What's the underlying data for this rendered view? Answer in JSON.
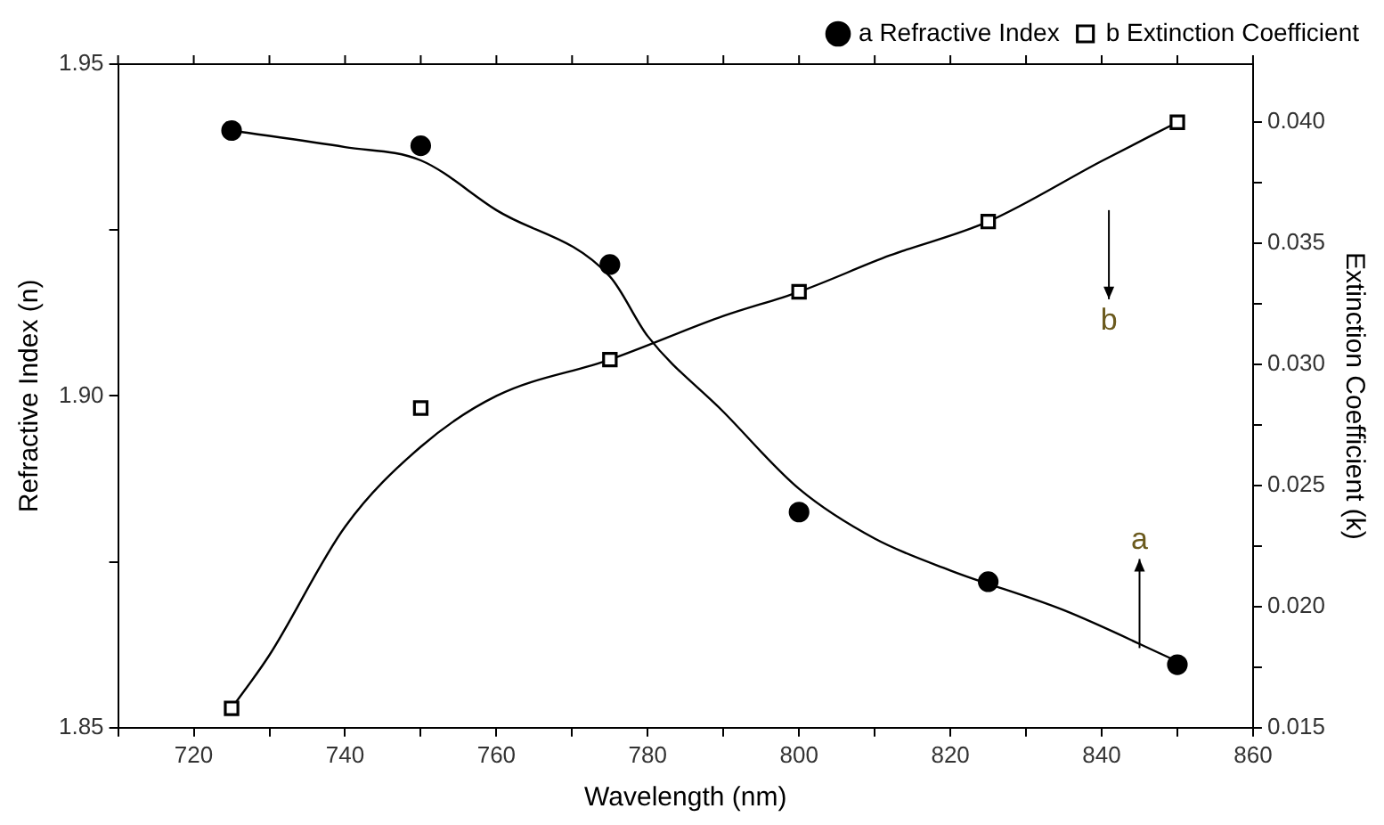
{
  "chart_data": {
    "type": "scatter",
    "xlabel": "Wavelength (nm)",
    "ylabel": "Refractive Index (n)",
    "y2label": "Extinction Coefficient (k)",
    "xlim": [
      710,
      860
    ],
    "xticks": [
      {
        "value": 710,
        "label": null
      },
      720,
      {
        "value": 730,
        "label": null
      },
      740,
      {
        "value": 750,
        "label": null
      },
      760,
      {
        "value": 770,
        "label": null
      },
      780,
      {
        "value": 790,
        "label": null
      },
      800,
      {
        "value": 810,
        "label": null
      },
      820,
      {
        "value": 830,
        "label": null
      },
      840,
      {
        "value": 850,
        "label": null
      },
      860
    ],
    "ylim": [
      1.85,
      1.95
    ],
    "yticks": [
      1.85,
      {
        "value": 1.875,
        "label": null
      },
      {
        "value": 1.9,
        "label": "1.90"
      },
      {
        "value": 1.925,
        "label": null
      },
      1.95
    ],
    "y2lim": [
      0.015,
      0.0424
    ],
    "y2ticks": [
      0.015,
      {
        "value": 0.0175,
        "label": null
      },
      {
        "value": 0.02,
        "label": "0.020"
      },
      {
        "value": 0.0225,
        "label": null
      },
      0.025,
      {
        "value": 0.0275,
        "label": null
      },
      {
        "value": 0.03,
        "label": "0.030"
      },
      {
        "value": 0.0325,
        "label": null
      },
      0.035,
      {
        "value": 0.0375,
        "label": null
      },
      {
        "value": 0.04,
        "label": "0.040"
      }
    ],
    "series": [
      {
        "name": "a Refractive Index",
        "marker": "circle",
        "color": "#000000",
        "x": [
          725,
          750,
          775,
          800,
          825,
          850
        ],
        "values": [
          1.94,
          1.9377,
          1.9198,
          1.8825,
          1.872,
          1.8595
        ]
      },
      {
        "name": "b Extinction Coefficient",
        "marker": "square",
        "axis": "y2",
        "color": "#000000",
        "x": [
          725,
          750,
          775,
          800,
          825,
          850
        ],
        "values": [
          0.0158,
          0.0282,
          0.0302,
          0.033,
          0.0359,
          0.04
        ]
      },
      {
        "type": "line",
        "color": "#000000",
        "x": [
          725,
          740,
          750,
          760,
          775,
          780,
          790,
          800,
          810,
          820,
          835,
          850
        ],
        "values": [
          1.94,
          1.9375,
          1.9355,
          1.928,
          1.918,
          1.909,
          1.8976,
          1.886,
          1.8785,
          1.8737,
          1.8677,
          1.86
        ]
      },
      {
        "type": "line",
        "axis": "y2",
        "color": "#000000",
        "x": [
          725,
          730,
          740,
          750,
          760,
          775,
          790,
          800,
          812,
          825,
          840,
          850
        ],
        "values": [
          0.0158,
          0.018,
          0.0233,
          0.0266,
          0.0287,
          0.0302,
          0.032,
          0.033,
          0.0345,
          0.0359,
          0.0384,
          0.04
        ]
      }
    ],
    "annotations": [
      {
        "text": "a",
        "x": 845,
        "y": 1.862
      },
      "b"
    ],
    "legend": "top right",
    "grid": false
  }
}
